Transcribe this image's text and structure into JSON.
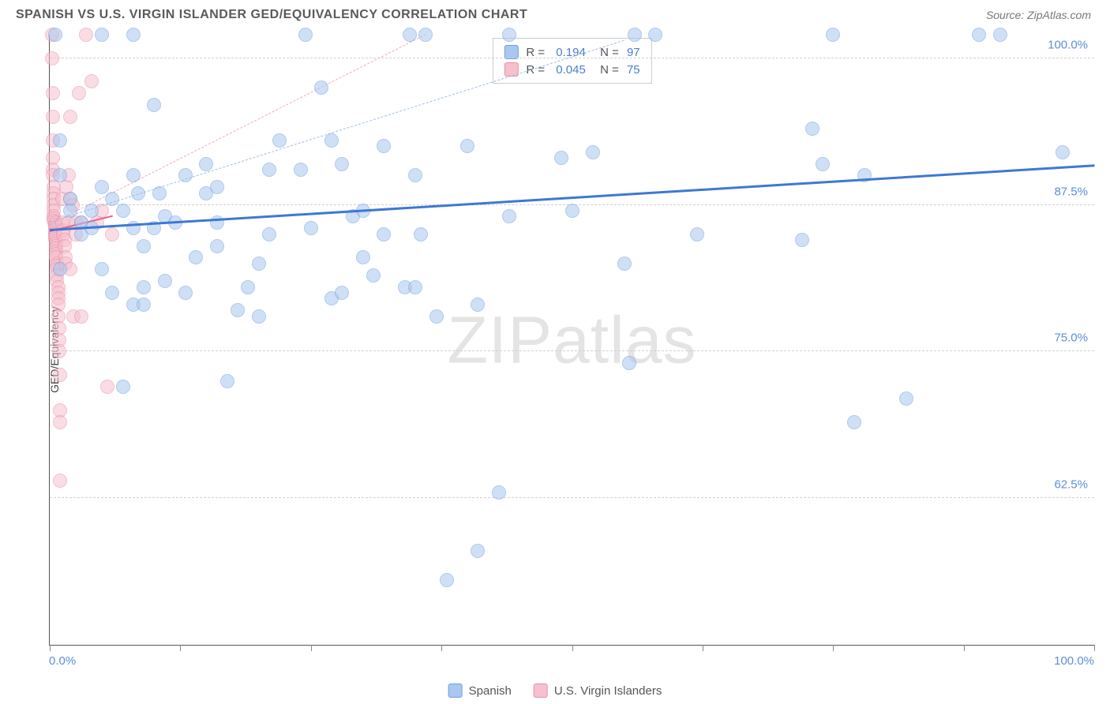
{
  "title": "SPANISH VS U.S. VIRGIN ISLANDER GED/EQUIVALENCY CORRELATION CHART",
  "source": "Source: ZipAtlas.com",
  "ylabel": "GED/Equivalency",
  "watermark_a": "ZIP",
  "watermark_b": "atlas",
  "chart": {
    "type": "scatter",
    "xlim": [
      0,
      100
    ],
    "ylim": [
      50,
      102
    ],
    "yticks": [
      {
        "v": 62.5,
        "label": "62.5%"
      },
      {
        "v": 75.0,
        "label": "75.0%"
      },
      {
        "v": 87.5,
        "label": "87.5%"
      },
      {
        "v": 100.0,
        "label": "100.0%"
      }
    ],
    "xtick_positions": [
      0,
      12.5,
      25,
      37.5,
      50,
      62.5,
      75,
      87.5,
      100
    ],
    "xaxis_labels": {
      "start": "0.0%",
      "end": "100.0%"
    },
    "grid_color": "#d0d0d0",
    "background_color": "#ffffff",
    "marker_radius": 9,
    "series": [
      {
        "name": "Spanish",
        "color_fill": "#a9c7ef",
        "color_stroke": "#6f9fdf",
        "r_value": "0.194",
        "n_value": "97",
        "regression": {
          "x0": 0,
          "y0": 85.3,
          "x1": 100,
          "y1": 90.8,
          "color": "#3d78d6",
          "dash": false,
          "width": 2.5
        },
        "ci_upper": {
          "x0": 0,
          "y0": 86.0,
          "x1": 55,
          "y1": 101.5,
          "color": "#9fbde6",
          "dash": true,
          "width": 1
        },
        "points": [
          [
            0.5,
            102
          ],
          [
            2,
            88
          ],
          [
            2,
            87
          ],
          [
            3,
            86
          ],
          [
            3,
            85
          ],
          [
            4,
            87
          ],
          [
            4,
            85.5
          ],
          [
            1,
            93
          ],
          [
            1,
            90
          ],
          [
            1,
            82
          ],
          [
            5,
            102
          ],
          [
            5,
            89
          ],
          [
            5,
            82
          ],
          [
            6,
            88
          ],
          [
            6,
            80
          ],
          [
            7,
            87
          ],
          [
            7,
            72
          ],
          [
            8,
            90
          ],
          [
            8,
            102
          ],
          [
            8,
            85.5
          ],
          [
            8.5,
            88.5
          ],
          [
            8,
            79
          ],
          [
            9,
            84
          ],
          [
            9,
            80.5
          ],
          [
            9,
            79
          ],
          [
            10,
            96
          ],
          [
            10,
            85.5
          ],
          [
            10.5,
            88.5
          ],
          [
            11,
            86.5
          ],
          [
            11,
            81
          ],
          [
            12,
            86
          ],
          [
            13,
            90
          ],
          [
            13,
            80
          ],
          [
            14,
            83
          ],
          [
            15,
            91
          ],
          [
            15,
            88.5
          ],
          [
            16,
            89
          ],
          [
            16,
            86
          ],
          [
            16,
            84
          ],
          [
            17,
            72.5
          ],
          [
            18,
            78.5
          ],
          [
            19,
            80.5
          ],
          [
            20,
            82.5
          ],
          [
            20,
            78
          ],
          [
            21,
            90.5
          ],
          [
            21,
            85
          ],
          [
            22,
            93
          ],
          [
            24,
            90.5
          ],
          [
            24.5,
            102
          ],
          [
            25,
            85.5
          ],
          [
            26,
            97.5
          ],
          [
            27,
            93
          ],
          [
            27,
            79.5
          ],
          [
            28,
            91
          ],
          [
            28,
            80
          ],
          [
            29,
            86.5
          ],
          [
            30,
            87
          ],
          [
            30,
            83
          ],
          [
            31,
            81.5
          ],
          [
            32,
            92.5
          ],
          [
            32,
            85
          ],
          [
            34,
            80.5
          ],
          [
            34.5,
            102
          ],
          [
            35,
            90
          ],
          [
            35,
            80.5
          ],
          [
            35.5,
            85
          ],
          [
            36,
            102
          ],
          [
            37,
            78
          ],
          [
            38,
            55.5
          ],
          [
            40,
            92.5
          ],
          [
            41,
            58
          ],
          [
            41,
            79
          ],
          [
            43,
            63
          ],
          [
            44,
            102
          ],
          [
            44,
            86.5
          ],
          [
            49,
            91.5
          ],
          [
            50,
            87
          ],
          [
            52,
            92
          ],
          [
            55,
            82.5
          ],
          [
            55.5,
            74
          ],
          [
            56,
            102
          ],
          [
            58,
            102
          ],
          [
            62,
            85
          ],
          [
            72,
            84.5
          ],
          [
            73,
            94
          ],
          [
            74,
            91
          ],
          [
            75,
            102
          ],
          [
            78,
            90
          ],
          [
            77,
            69
          ],
          [
            82,
            71
          ],
          [
            89,
            102
          ],
          [
            91,
            102
          ],
          [
            97,
            92
          ]
        ]
      },
      {
        "name": "U.S. Virgin Islanders",
        "color_fill": "#f6c0ce",
        "color_stroke": "#e78fa8",
        "r_value": "0.045",
        "n_value": "75",
        "regression": {
          "x0": 0,
          "y0": 85.2,
          "x1": 6,
          "y1": 86.5,
          "color": "#e16b8b",
          "dash": false,
          "width": 2
        },
        "ci_upper": {
          "x0": 0,
          "y0": 85.8,
          "x1": 36,
          "y1": 102,
          "color": "#f0a8ba",
          "dash": true,
          "width": 1
        },
        "points": [
          [
            0.2,
            102
          ],
          [
            0.2,
            100
          ],
          [
            0.3,
            97
          ],
          [
            0.3,
            95
          ],
          [
            0.3,
            93
          ],
          [
            0.3,
            91.5
          ],
          [
            0.3,
            90.5
          ],
          [
            0.3,
            90
          ],
          [
            0.4,
            89
          ],
          [
            0.4,
            88.5
          ],
          [
            0.4,
            88
          ],
          [
            0.4,
            87.5
          ],
          [
            0.4,
            87
          ],
          [
            0.4,
            86.5
          ],
          [
            0.4,
            86.3
          ],
          [
            0.4,
            86.1
          ],
          [
            0.5,
            86
          ],
          [
            0.5,
            85.8
          ],
          [
            0.5,
            85.5
          ],
          [
            0.5,
            85.3
          ],
          [
            0.5,
            85.1
          ],
          [
            0.5,
            85
          ],
          [
            0.5,
            84.8
          ],
          [
            0.5,
            84.6
          ],
          [
            0.6,
            84.4
          ],
          [
            0.6,
            84.2
          ],
          [
            0.6,
            84
          ],
          [
            0.6,
            83.8
          ],
          [
            0.6,
            83.5
          ],
          [
            0.6,
            83.3
          ],
          [
            0.6,
            83
          ],
          [
            0.7,
            82.5
          ],
          [
            0.7,
            82.3
          ],
          [
            0.7,
            82
          ],
          [
            0.7,
            81.5
          ],
          [
            0.7,
            81
          ],
          [
            0.8,
            80.5
          ],
          [
            0.8,
            80
          ],
          [
            0.8,
            79.5
          ],
          [
            0.8,
            79
          ],
          [
            0.8,
            78
          ],
          [
            0.9,
            77
          ],
          [
            0.9,
            76
          ],
          [
            0.9,
            75
          ],
          [
            1,
            73
          ],
          [
            1,
            70
          ],
          [
            1,
            69
          ],
          [
            1,
            64
          ],
          [
            1.2,
            88
          ],
          [
            1.2,
            86
          ],
          [
            1.3,
            85.3
          ],
          [
            1.3,
            85
          ],
          [
            1.4,
            84.5
          ],
          [
            1.4,
            84
          ],
          [
            1.5,
            83
          ],
          [
            1.5,
            82.5
          ],
          [
            1.6,
            89
          ],
          [
            1.8,
            90
          ],
          [
            1.8,
            86
          ],
          [
            2,
            95
          ],
          [
            2,
            88
          ],
          [
            2,
            82
          ],
          [
            2.2,
            87.5
          ],
          [
            2.3,
            78
          ],
          [
            2.5,
            86
          ],
          [
            2.5,
            85
          ],
          [
            2.8,
            97
          ],
          [
            3,
            86
          ],
          [
            3,
            78
          ],
          [
            3.5,
            102
          ],
          [
            4,
            98
          ],
          [
            4.5,
            86
          ],
          [
            5,
            87
          ],
          [
            5.5,
            72
          ],
          [
            6,
            85
          ]
        ]
      }
    ]
  },
  "legend_bottom": [
    {
      "swatch": "blue",
      "label": "Spanish"
    },
    {
      "swatch": "pink",
      "label": "U.S. Virgin Islanders"
    }
  ]
}
